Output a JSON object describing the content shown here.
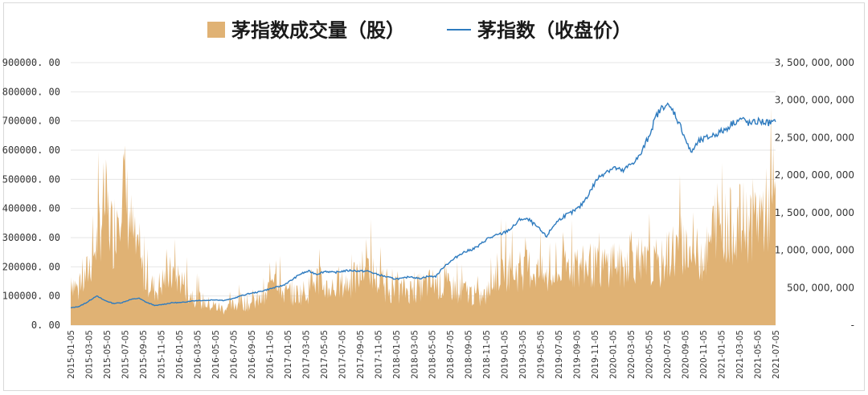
{
  "chart_data": {
    "type": "bar+line",
    "title": "",
    "legend": {
      "placement": "top-center",
      "entries": [
        {
          "label": "茅指数成交量（股）",
          "kind": "area",
          "color": "#e0b274"
        },
        {
          "label": "茅指数（收盘价）",
          "kind": "line",
          "color": "#2e7bbf"
        }
      ]
    },
    "grid": true,
    "y_left": {
      "range": [
        0,
        900000
      ],
      "ticks": [
        0,
        100000,
        200000,
        300000,
        400000,
        500000,
        600000,
        700000,
        800000,
        900000
      ],
      "tick_labels": [
        "0. 00",
        "100000. 00",
        "200000. 00",
        "300000. 00",
        "400000. 00",
        "500000. 00",
        "600000. 00",
        "700000. 00",
        "800000. 00",
        "900000. 00"
      ]
    },
    "y_right": {
      "range": [
        0,
        3500000000
      ],
      "ticks": [
        0,
        500000000,
        1000000000,
        1500000000,
        2000000000,
        2500000000,
        3000000000,
        3500000000
      ],
      "tick_labels": [
        "-",
        "500, 000, 000",
        "1, 000, 000, 000",
        "1, 500, 000, 000",
        "2, 000, 000, 000",
        "2, 500, 000, 000",
        "3, 000, 000, 000",
        "3, 500, 000, 000"
      ]
    },
    "x_ticks": [
      "2015-01-05",
      "2015-03-05",
      "2015-05-05",
      "2015-07-05",
      "2015-09-05",
      "2015-11-05",
      "2016-01-05",
      "2016-03-05",
      "2016-05-05",
      "2016-07-05",
      "2016-09-05",
      "2016-11-05",
      "2017-01-05",
      "2017-03-05",
      "2017-05-05",
      "2017-07-05",
      "2017-09-05",
      "2017-11-05",
      "2018-01-05",
      "2018-03-05",
      "2018-05-05",
      "2018-07-05",
      "2018-09-05",
      "2018-11-05",
      "2019-01-05",
      "2019-03-05",
      "2019-05-05",
      "2019-07-05",
      "2019-09-05",
      "2019-11-05",
      "2020-01-05",
      "2020-03-05",
      "2020-05-05",
      "2020-07-05",
      "2020-09-05",
      "2020-11-05",
      "2021-01-05",
      "2021-03-05",
      "2021-05-05",
      "2021-07-05"
    ],
    "volume_series": {
      "name": "茅指数成交量（股）",
      "values": [
        180000,
        120000,
        200000,
        300000,
        460000,
        330000,
        560000,
        380000,
        230000,
        170000,
        130000,
        170000,
        190000,
        170000,
        120000,
        100000,
        80000,
        70000,
        60000,
        70000,
        90000,
        80000,
        90000,
        100000,
        230000,
        120000,
        110000,
        120000,
        130000,
        170000,
        140000,
        140000,
        150000,
        160000,
        180000,
        230000,
        170000,
        140000,
        130000,
        130000,
        130000,
        140000,
        150000,
        160000,
        140000,
        140000,
        130000,
        120000,
        100000,
        110000,
        190000,
        210000,
        200000,
        200000,
        210000,
        200000,
        170000,
        180000,
        210000,
        230000,
        200000,
        230000,
        210000,
        220000,
        250000,
        200000,
        290000,
        200000,
        230000,
        190000,
        250000,
        280000,
        300000,
        270000,
        260000,
        270000,
        400000,
        360000,
        370000,
        380000,
        380000,
        410000,
        420000,
        440000
      ]
    },
    "close_series": {
      "name": "茅指数（收盘价）",
      "values": [
        230000000,
        250000000,
        310000000,
        390000000,
        330000000,
        290000000,
        300000000,
        340000000,
        360000000,
        300000000,
        260000000,
        280000000,
        300000000,
        300000000,
        320000000,
        330000000,
        330000000,
        340000000,
        330000000,
        350000000,
        390000000,
        420000000,
        440000000,
        470000000,
        500000000,
        530000000,
        600000000,
        680000000,
        720000000,
        680000000,
        720000000,
        700000000,
        720000000,
        730000000,
        720000000,
        720000000,
        680000000,
        650000000,
        620000000,
        620000000,
        650000000,
        620000000,
        650000000,
        650000000,
        790000000,
        870000000,
        960000000,
        1000000000,
        1050000000,
        1150000000,
        1190000000,
        1230000000,
        1300000000,
        1420000000,
        1400000000,
        1300000000,
        1180000000,
        1350000000,
        1450000000,
        1500000000,
        1580000000,
        1750000000,
        1950000000,
        2050000000,
        2100000000,
        2050000000,
        2150000000,
        2250000000,
        2500000000,
        2800000000,
        2950000000,
        2850000000,
        2600000000,
        2300000000,
        2450000000,
        2500000000,
        2550000000,
        2600000000,
        2700000000,
        2750000000,
        2680000000,
        2720000000,
        2700000000,
        2700000000
      ]
    }
  }
}
